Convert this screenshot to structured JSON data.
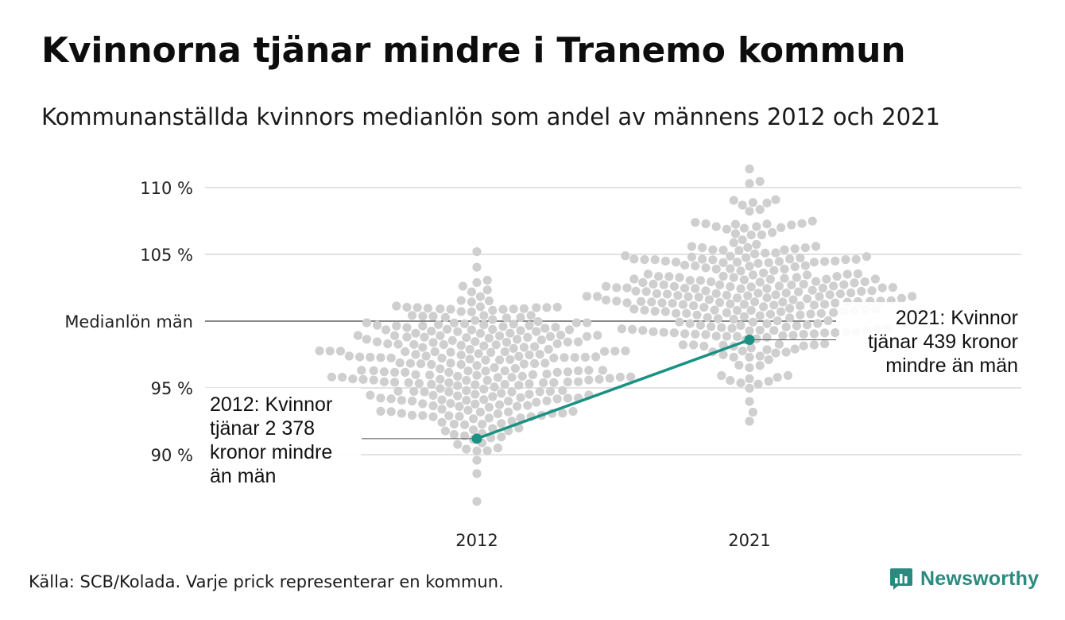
{
  "title": "Kvinnorna tjänar mindre i Tranemo kommun",
  "subtitle": "Kommunanställda kvinnors medianlön som andel av männens 2012 och 2021",
  "source": "Källa: SCB/Kolada. Varje prick representerar en kommun.",
  "brand": {
    "name": "Newsworthy",
    "color": "#2a8a80"
  },
  "chart_data": {
    "type": "scatter",
    "subtype": "beeswarm",
    "categories": [
      "2012",
      "2021"
    ],
    "y_ticks": [
      {
        "value": 90,
        "label": "90 %"
      },
      {
        "value": 95,
        "label": "95 %"
      },
      {
        "value": 100,
        "label": "Medianlön män"
      },
      {
        "value": 105,
        "label": "105 %"
      },
      {
        "value": 110,
        "label": "110 %"
      }
    ],
    "reference_line": {
      "value": 100,
      "label": "Medianlön män"
    },
    "ylim": [
      86,
      112
    ],
    "grid": true,
    "dot_color": "#cfcfcf",
    "highlight_color": "#1a9182",
    "distributions": [
      {
        "year": "2012",
        "min": 86.5,
        "max": 105.2,
        "center": 96.5,
        "count": 290
      },
      {
        "year": "2021",
        "min": 92.5,
        "max": 111.4,
        "center": 102.0,
        "count": 290
      }
    ],
    "highlight": {
      "name": "Tranemo",
      "points": [
        {
          "x": "2012",
          "y": 91.2
        },
        {
          "x": "2021",
          "y": 98.6
        }
      ]
    },
    "annotations": [
      {
        "year": "2012",
        "lines": [
          "2012: Kvinnor",
          "tjänar 2 378",
          "kronor mindre",
          "än män"
        ]
      },
      {
        "year": "2021",
        "lines": [
          "2021: Kvinnor",
          "tjänar 439 kronor",
          "mindre än män"
        ]
      }
    ]
  }
}
